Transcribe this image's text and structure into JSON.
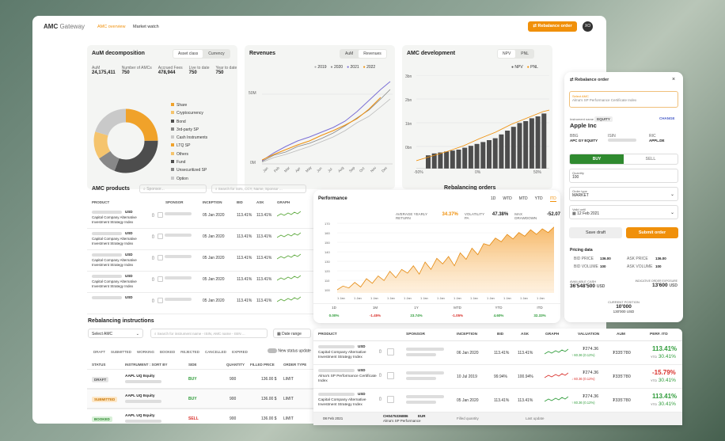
{
  "app": {
    "brand": "AMC",
    "brand_sub": "Gateway",
    "nav": [
      "AMC overview",
      "Market watch"
    ],
    "rebalance_btn": "Rebalance order",
    "avatar": "XO"
  },
  "aum": {
    "title": "AuM decomposition",
    "toggle": [
      "Asset class",
      "Currency"
    ],
    "stats": [
      {
        "label": "AuM",
        "value": "24,175,411"
      },
      {
        "label": "Number of AMCs",
        "value": "750"
      },
      {
        "label": "Accrued Fees",
        "value": "478,944"
      },
      {
        "label": "Live to date",
        "value": "750"
      },
      {
        "label": "Year to date",
        "value": "750"
      }
    ],
    "legend": [
      "Share",
      "Cryptocurrency",
      "Bond",
      "3rd-party SP",
      "Cash Instruments",
      "LTQ SP",
      "Others",
      "Fund",
      "Unsecuritized SP",
      "Option"
    ]
  },
  "revenues": {
    "title": "Revenues",
    "toggle": [
      "AuM",
      "Revenues"
    ],
    "years": [
      "2019",
      "2020",
      "2021",
      "2022"
    ],
    "ytick": [
      "50M",
      "0M"
    ],
    "months": [
      "Jan",
      "Feb",
      "Mar",
      "Apr",
      "May",
      "Jun",
      "Jul",
      "Aug",
      "Sep",
      "Oct",
      "Nov",
      "Dec"
    ]
  },
  "amcdev": {
    "title": "AMC development",
    "toggle": [
      "NPV",
      "PNL"
    ],
    "legend": [
      "NPV",
      "PNL"
    ],
    "yticks": [
      "3bn",
      "2bn",
      "1bn",
      "0bn"
    ],
    "xticks": [
      "-50%",
      "0%",
      "50%"
    ]
  },
  "products": {
    "title": "AMC products",
    "sponsor_ph": "Sponsor...",
    "search_ph": "Search for ISIN, CCY, Name, Sponsor ...",
    "cols": [
      "PRODUCT",
      "SPONSOR",
      "INCEPTION",
      "BID",
      "ASK",
      "GRAPH"
    ],
    "rows": [
      {
        "ccy": "USD",
        "name": "Capital Company Alternative Investment Strategy Index",
        "date": "05 Jan 2020",
        "bid": "113.41%",
        "ask": "113.41%"
      },
      {
        "ccy": "USD",
        "name": "Capital Company Alternative Investment Strategy Index",
        "date": "05 Jan 2020",
        "bid": "113.41%",
        "ask": "113.41%"
      },
      {
        "ccy": "USD",
        "name": "Capital Company Alternative Investment Strategy Index",
        "date": "05 Jan 2020",
        "bid": "113.41%",
        "ask": "113.41%"
      },
      {
        "ccy": "USD",
        "name": "Capital Company Alternative Investment Strategy Index",
        "date": "05 Jan 2020",
        "bid": "113.41%",
        "ask": "113.41%"
      },
      {
        "ccy": "USD",
        "name": "",
        "date": "05 Jan 2020",
        "bid": "113.41%",
        "ask": "113.41%"
      }
    ]
  },
  "instructions": {
    "title": "Rebalancing instructions",
    "select": "Select AMC",
    "search_ph": "Search for instrument name - ISIN, AMC name - ISIN ...",
    "date_range": "Date range",
    "filters": [
      "DRAFT",
      "SUBMITTED",
      "WORKING",
      "BOOKED",
      "REJECTED",
      "CANCELLED",
      "EXPIRED"
    ],
    "new_status": "New status update",
    "cols": [
      "STATUS",
      "INSTRUMENT : SORT BY",
      "SIDE",
      "QUANTITY",
      "FILLED PRICE",
      "ORDER TYPE"
    ],
    "rows": [
      {
        "status": "DRAFT",
        "inst": "AAPL UQ Equity",
        "side": "BUY",
        "qty": "900",
        "price": "136.00 $",
        "type": "LIMIT"
      },
      {
        "status": "SUBMITTED",
        "inst": "AAPL UQ Equity",
        "side": "BUY",
        "qty": "900",
        "price": "136.00 $",
        "type": "LIMIT"
      },
      {
        "status": "BOOKED",
        "inst": "AAPL UQ Equity",
        "side": "SELL",
        "qty": "900",
        "price": "136.00 $",
        "type": "LIMIT"
      }
    ]
  },
  "rebal_orders_title": "Rebalancing orders",
  "performance": {
    "title": "Performance",
    "periods": [
      "1D",
      "WTD",
      "MTD",
      "YTD",
      "ITD"
    ],
    "avg_label": "AVERAGE YEARLY RETURN",
    "avg": "34.37%",
    "vol_label": "VOLATILITY PA",
    "vol": "47.38%",
    "dd_label": "MAX DRAWDOWN",
    "dd": "-52.07",
    "yticks": [
      "170",
      "160",
      "150",
      "140",
      "130",
      "120",
      "110",
      "100"
    ],
    "xticks": [
      "1 Jan",
      "1 Jan",
      "1 Jan",
      "1 Jan",
      "1 Jan",
      "1 Jan",
      "1 Jan",
      "1 Jan",
      "1 Jan",
      "1 Jan",
      "1 Jan",
      "1 Jan",
      "1 Jan"
    ],
    "foot_labels": [
      "1D",
      "1M",
      "1Y",
      "MTD",
      "YTD",
      "ITD"
    ],
    "foot_values": [
      "0.00%",
      "-1.45%",
      "23.74%",
      "-1.05%",
      "4.60%",
      "32.33%"
    ],
    "chart_data": {
      "type": "area",
      "y": [
        100,
        104,
        102,
        108,
        103,
        112,
        107,
        115,
        110,
        120,
        113,
        122,
        118,
        126,
        117,
        130,
        122,
        134,
        128,
        136,
        126,
        140,
        133,
        145,
        138,
        150,
        148,
        156,
        152,
        160,
        155,
        162,
        158,
        165,
        160,
        166,
        162,
        168
      ]
    }
  },
  "order": {
    "title": "Rebalance order",
    "amc_label": "Select AMC",
    "amc_name": "Alma's SP Performance Certificate Index",
    "inst_label": "Instrument name",
    "inst_badge": "EQUITY",
    "change": "CHANGE",
    "inst": "Apple Inc",
    "bbg_l": "BBG",
    "bbg": "APC GY EQUITY",
    "isin_l": "ISIN",
    "isin": "US0378331005",
    "ric_l": "RIC",
    "ric": "APPL.DE",
    "buy": "BUY",
    "sell": "SELL",
    "qty_l": "Quantity",
    "qty": "100",
    "type_l": "Order type",
    "type": "MARKET",
    "valid_l": "Valid until",
    "valid": "12 Feb 2021",
    "save": "Save draft",
    "submit": "Submit order",
    "pricing": "Pricing data",
    "bid_p_l": "BID PRICE",
    "bid_p": "136.00",
    "ask_p_l": "ASK PRICE",
    "ask_p": "136.00",
    "bid_v_l": "BID VOLUME",
    "bid_v": "100",
    "ask_v_l": "ASK VOLUME",
    "ask_v": "100",
    "cash_l": "AVAILABLE CASH",
    "cash": "36'548'500",
    "cash_ccy": "USD",
    "exp_l": "INDICATIVE ORDER EXPOSURE",
    "exp": "13'600",
    "exp_ccy": "USD",
    "cur_l": "CURRENT POSITION",
    "cur": "10'000",
    "cur_sub": "130'000 USD"
  },
  "big_table": {
    "cols": [
      "PRODUCT",
      "SPONSOR",
      "INCEPTION",
      "BID",
      "ASK",
      "GRAPH",
      "VALUATION",
      "AUM",
      "PERF. ITD"
    ],
    "rows": [
      {
        "ccy": "USD",
        "name": "Capital Company Alternative Investment Strategy Index",
        "date": "06 Jan 2020",
        "bid": "113.41%",
        "ask": "113.41%",
        "val": "₮274.36",
        "valsub": "↑ 60.36 (0.12%)",
        "aum": "₮335'780",
        "perf": "113.41%",
        "ytd": "30.41%",
        "dir": "up"
      },
      {
        "ccy": "USD",
        "name": "Alma's SP Performance Certificate Index",
        "date": "10 Jul 2019",
        "bid": "99.94%",
        "ask": "100.94%",
        "val": "₮274.36",
        "valsub": "↓ 60.36 (0.12%)",
        "aum": "₮335'780",
        "perf": "-15.79%",
        "ytd": "30.41%",
        "dir": "down"
      },
      {
        "ccy": "USD",
        "name": "Capital Company Alternative Investment Strategy Index",
        "date": "05 Jan 2020",
        "bid": "113.41%",
        "ask": "113.41%",
        "val": "₮274.36",
        "valsub": "↑ 60.36 (0.12%)",
        "aum": "₮335'780",
        "perf": "113.41%",
        "ytd": "30.41%",
        "dir": "up"
      }
    ],
    "ytd_l": "YTD",
    "partial": {
      "isin": "CH0475336886",
      "ccy": "EUR",
      "name": "Alma's SP Performance",
      "date": "08 Feb 2021",
      "filled": "Filled quantity",
      "last": "Last update"
    }
  },
  "colors": {
    "accent": "#f0900a",
    "dark": "#4a4a4a",
    "gray": "#9a9a9a",
    "lightgray": "#c8c8c8"
  }
}
